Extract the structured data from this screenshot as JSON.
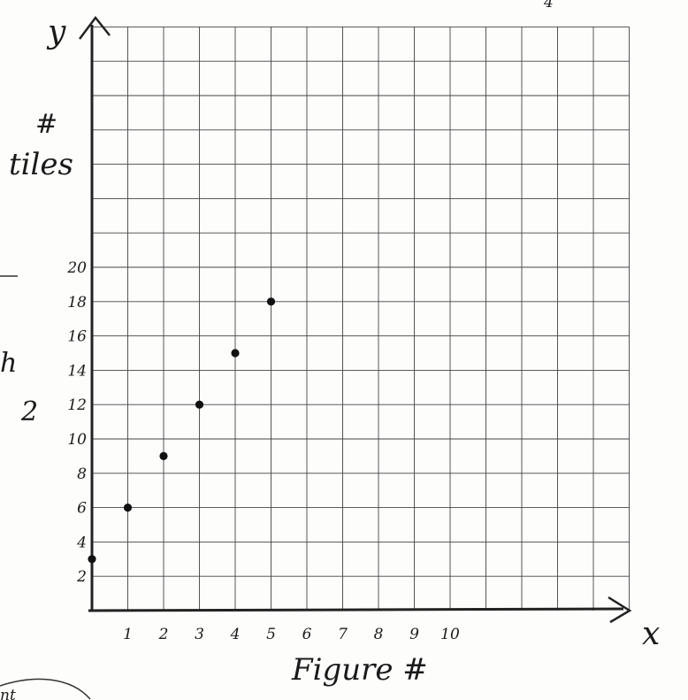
{
  "chart_data": {
    "type": "scatter",
    "title": "",
    "xlabel": "Figure #",
    "ylabel_symbol": "#",
    "ylabel_word": "tiles",
    "x_axis_letter": "x",
    "y_axis_letter": "y",
    "x_ticks": [
      "1",
      "2",
      "3",
      "4",
      "5",
      "6",
      "7",
      "8",
      "9",
      "10"
    ],
    "y_ticks": [
      "2",
      "4",
      "6",
      "8",
      "10",
      "12",
      "14",
      "16",
      "18",
      "20"
    ],
    "xlim": [
      0,
      15
    ],
    "ylim": [
      0,
      34
    ],
    "grid": true,
    "points": [
      {
        "x": 0,
        "y": 3
      },
      {
        "x": 1,
        "y": 6
      },
      {
        "x": 2,
        "y": 9
      },
      {
        "x": 3,
        "y": 12
      },
      {
        "x": 4,
        "y": 15
      },
      {
        "x": 5,
        "y": 18
      }
    ]
  },
  "margin_marks": {
    "left_h": "h",
    "left_2": "2",
    "top_right": "4",
    "bottom_left": "nt"
  }
}
